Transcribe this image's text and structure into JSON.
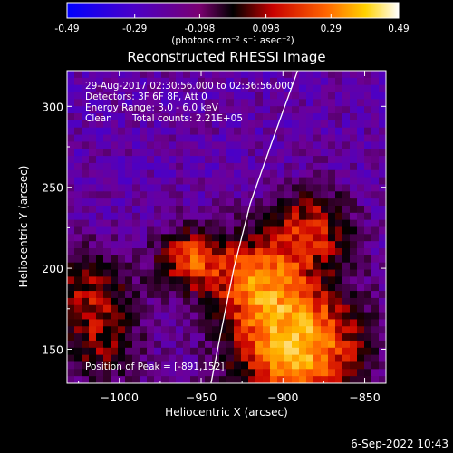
{
  "colorbar": {
    "ticks": [
      "-0.49",
      "-0.29",
      "-0.098",
      "0.098",
      "0.29",
      "0.49"
    ],
    "tick_values": [
      -0.49,
      -0.29,
      -0.098,
      0.098,
      0.29,
      0.49
    ],
    "range": [
      -0.49,
      0.49
    ],
    "unit_label": "(photons cm⁻² s⁻¹ asec⁻²)",
    "colormap": "blue-purple-red-yellow-white"
  },
  "annotations": {
    "time": "29-Aug-2017 02:30:56.000 to 02:36:56.000",
    "detectors": "Detectors: 3F 6F 8F, Att 0",
    "energy": "Energy Range: 3.0 - 6.0 keV",
    "method": "Clean",
    "counts": "Total counts: 2.21E+05",
    "peak": "Position of Peak = [-891,152]"
  },
  "footer": {
    "date": "6-Sep-2022 10:43"
  },
  "chart_data": {
    "type": "heatmap",
    "title": "Reconstructed RHESSI Image",
    "xlabel": "Heliocentric X (arcsec)",
    "ylabel": "Heliocentric Y (arcsec)",
    "xlim": [
      -1032,
      -837
    ],
    "ylim": [
      129,
      322
    ],
    "x_ticks": [
      -1000,
      -950,
      -900,
      -850
    ],
    "x_tick_labels": [
      "−1000",
      "−950",
      "−900",
      "−850"
    ],
    "y_ticks": [
      150,
      200,
      250,
      300
    ],
    "y_tick_labels": [
      "150",
      "200",
      "250",
      "300"
    ],
    "peak": {
      "x": -891,
      "y": 152
    },
    "limb_curve": [
      [
        -944,
        129
      ],
      [
        -938,
        160
      ],
      [
        -930,
        200
      ],
      [
        -920,
        240
      ],
      [
        -906,
        280
      ],
      [
        -891,
        322
      ]
    ],
    "sources": [
      {
        "x": -891,
        "y": 152,
        "sigma": 28,
        "amp": 0.49
      },
      {
        "x": -918,
        "y": 195,
        "sigma": 20,
        "amp": 0.28
      },
      {
        "x": -882,
        "y": 225,
        "sigma": 18,
        "amp": 0.24
      },
      {
        "x": -958,
        "y": 206,
        "sigma": 14,
        "amp": 0.28
      },
      {
        "x": -1018,
        "y": 186,
        "sigma": 20,
        "amp": 0.18
      },
      {
        "x": -1012,
        "y": 150,
        "sigma": 18,
        "amp": 0.12
      }
    ],
    "background_level": -0.22
  }
}
